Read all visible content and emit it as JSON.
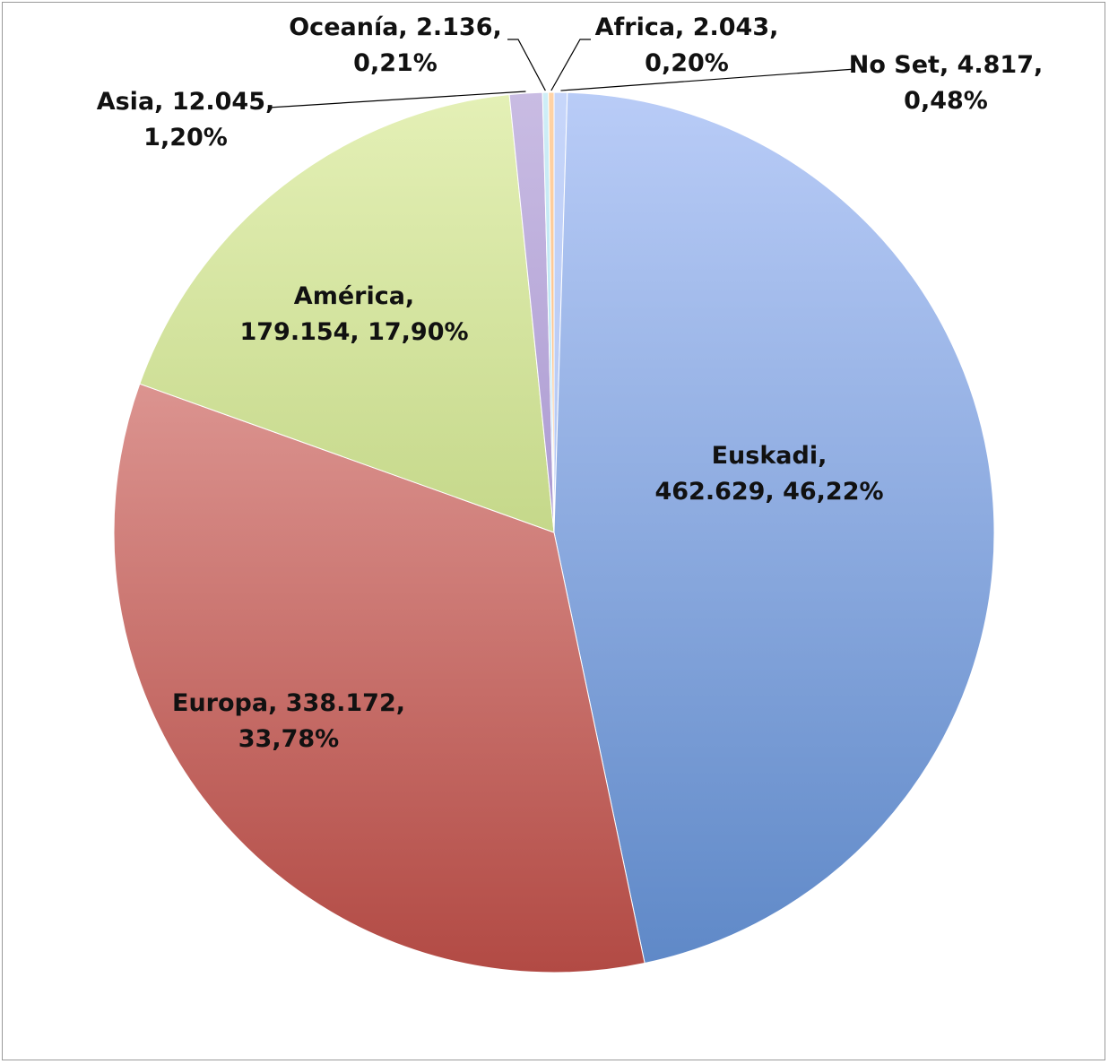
{
  "chart_data": {
    "type": "pie",
    "title": "",
    "slices": [
      {
        "key": "euskadi",
        "label": "Euskadi",
        "value": 462629,
        "value_text": "462.629",
        "percent": 46.22,
        "percent_text": "46,22%",
        "label_lines": [
          "Euskadi,",
          "462.629, 46,22%"
        ],
        "color_top": "#b9ccf7",
        "color_bottom": "#5e88c7"
      },
      {
        "key": "europa",
        "label": "Europa",
        "value": 338172,
        "value_text": "338.172",
        "percent": 33.78,
        "percent_text": "33,78%",
        "label_lines": [
          "Europa, 338.172,",
          "33,78%"
        ],
        "color_top": "#f0b8b5",
        "color_bottom": "#b24a44"
      },
      {
        "key": "america",
        "label": "América",
        "value": 179154,
        "value_text": "179.154",
        "percent": 17.9,
        "percent_text": "17,90%",
        "label_lines": [
          "América,",
          "179.154, 17,90%"
        ],
        "color_top": "#e4f0b6",
        "color_bottom": "#a6c05e"
      },
      {
        "key": "asia",
        "label": "Asia",
        "value": 12045,
        "value_text": "12.045",
        "percent": 1.2,
        "percent_text": "1,20%",
        "label_lines": [
          "Asia, 12.045,",
          "1,20%"
        ],
        "color_top": "#c9bce3",
        "color_bottom": "#8f79c0"
      },
      {
        "key": "oceania",
        "label": "Oceanía",
        "value": 2136,
        "value_text": "2.136",
        "percent": 0.21,
        "percent_text": "0,21%",
        "label_lines": [
          "Oceanía, 2.136,",
          "0,21%"
        ],
        "color_top": "#cfeef7",
        "color_bottom": "#8fd3ea"
      },
      {
        "key": "africa",
        "label": "Africa",
        "value": 2043,
        "value_text": "2.043",
        "percent": 0.2,
        "percent_text": "0,20%",
        "label_lines": [
          "Africa, 2.043,",
          "0,20%"
        ],
        "color_top": "#ffd3a6",
        "color_bottom": "#f0a35a"
      },
      {
        "key": "no_set",
        "label": "No Set",
        "value": 4817,
        "value_text": "4.817",
        "percent": 0.48,
        "percent_text": "0,48%",
        "label_lines": [
          "No Set, 4.817,",
          "0,48%"
        ],
        "color_top": "#c7d6fa",
        "color_bottom": "#9fb6ea"
      }
    ],
    "slice_order": [
      "no_set",
      "euskadi",
      "europa",
      "america",
      "asia",
      "oceania",
      "africa"
    ],
    "start_angle": "12 o'clock",
    "direction": "clockwise",
    "legend": "none",
    "data_labels": "category, value, percentage"
  }
}
